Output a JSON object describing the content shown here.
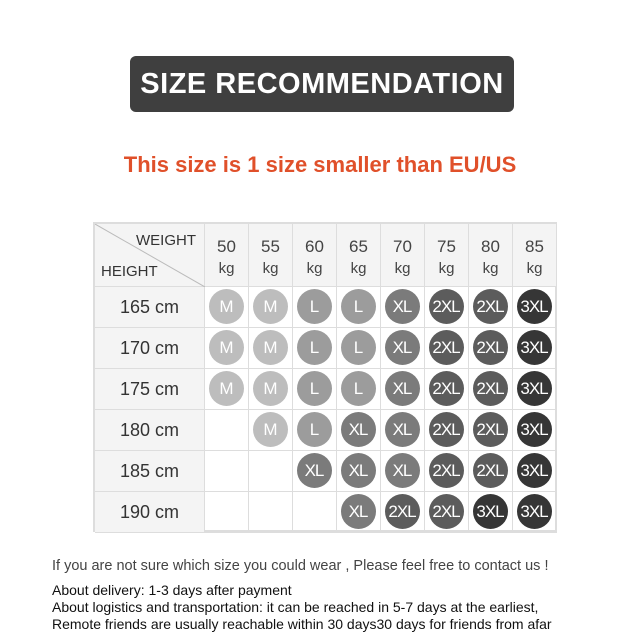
{
  "title": "SIZE RECOMMENDATION",
  "subtitle": "This size is 1 size smaller than EU/US",
  "table": {
    "corner_weight": "WEIGHT",
    "corner_height": "HEIGHT",
    "unit": "kg",
    "weights": [
      "50",
      "55",
      "60",
      "65",
      "70",
      "75",
      "80",
      "85"
    ],
    "heights": [
      "165 cm",
      "170 cm",
      "175 cm",
      "180 cm",
      "185 cm",
      "190 cm"
    ],
    "sizes": [
      [
        "M",
        "M",
        "L",
        "L",
        "XL",
        "2XL",
        "2XL",
        "3XL"
      ],
      [
        "M",
        "M",
        "L",
        "L",
        "XL",
        "2XL",
        "2XL",
        "3XL"
      ],
      [
        "M",
        "M",
        "L",
        "L",
        "XL",
        "2XL",
        "2XL",
        "3XL"
      ],
      [
        "",
        "M",
        "L",
        "XL",
        "XL",
        "2XL",
        "2XL",
        "3XL"
      ],
      [
        "",
        "",
        "XL",
        "XL",
        "XL",
        "2XL",
        "2XL",
        "3XL"
      ],
      [
        "",
        "",
        "",
        "XL",
        "2XL",
        "2XL",
        "3XL",
        "3XL"
      ]
    ],
    "size_colors": {
      "M": "#bdbdbd",
      "L": "#9c9c9c",
      "XL": "#7b7b7b",
      "2XL": "#5c5c5c",
      "3XL": "#363636"
    }
  },
  "notes": {
    "contact": "If you are not sure which size you could wear , Please feel free to contact us !",
    "delivery": "About delivery: 1-3 days after payment",
    "logistics": "About logistics and transportation: it can be reached in 5-7 days at the earliest,",
    "remote": "Remote friends are usually reachable within 30 days30 days for friends from afar"
  }
}
